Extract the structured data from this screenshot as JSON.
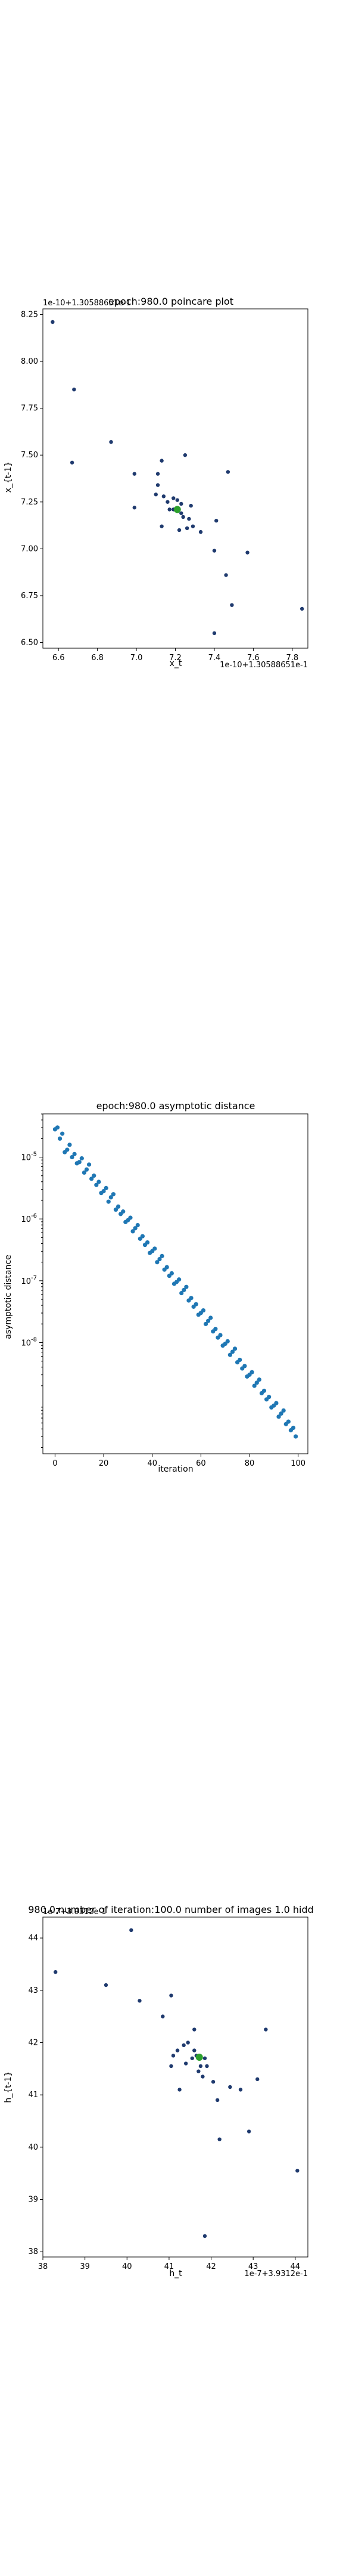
{
  "colors": {
    "points": "#1f3a6e",
    "asym_points": "#1f77b4",
    "fixed_point": "#2ca02c",
    "axis": "#000000"
  },
  "chart_data": [
    {
      "type": "scatter",
      "title": "epoch:980.0 poincare plot",
      "xlabel": "x_t",
      "ylabel": "x_{t-1}",
      "x_offset_label": "1e-10+1.30588651e-1",
      "y_offset_label": "1e-10+1.30588651e-1",
      "xlim": [
        6.52,
        7.88
      ],
      "ylim": [
        6.47,
        8.28
      ],
      "xticks": [
        6.6,
        6.8,
        7.0,
        7.2,
        7.4,
        7.6,
        7.8
      ],
      "yticks": [
        6.5,
        6.75,
        7.0,
        7.25,
        7.5,
        7.75,
        8.0,
        8.25
      ],
      "points": [
        [
          6.57,
          8.21
        ],
        [
          6.68,
          7.85
        ],
        [
          6.67,
          7.46
        ],
        [
          6.87,
          7.57
        ],
        [
          6.99,
          7.22
        ],
        [
          6.99,
          7.4
        ],
        [
          7.11,
          7.4
        ],
        [
          7.13,
          7.47
        ],
        [
          7.25,
          7.5
        ],
        [
          7.47,
          7.41
        ],
        [
          7.11,
          7.34
        ],
        [
          7.14,
          7.28
        ],
        [
          7.1,
          7.29
        ],
        [
          7.16,
          7.25
        ],
        [
          7.19,
          7.27
        ],
        [
          7.21,
          7.26
        ],
        [
          7.23,
          7.24
        ],
        [
          7.23,
          7.19
        ],
        [
          7.24,
          7.17
        ],
        [
          7.27,
          7.16
        ],
        [
          7.28,
          7.23
        ],
        [
          7.29,
          7.12
        ],
        [
          7.26,
          7.11
        ],
        [
          7.33,
          7.09
        ],
        [
          7.17,
          7.21
        ],
        [
          7.19,
          7.21
        ],
        [
          7.13,
          7.12
        ],
        [
          7.22,
          7.1
        ],
        [
          7.41,
          7.15
        ],
        [
          7.4,
          6.99
        ],
        [
          7.46,
          6.86
        ],
        [
          7.49,
          6.7
        ],
        [
          7.4,
          6.55
        ],
        [
          7.57,
          6.98
        ],
        [
          7.85,
          6.68
        ]
      ],
      "fixed_point": [
        7.21,
        7.21
      ]
    },
    {
      "type": "scatter",
      "title": "epoch:980.0 asymptotic distance",
      "xlabel": "iteration",
      "ylabel": "asymptotic distance",
      "yscale": "log",
      "xlim": [
        -5,
        104
      ],
      "ylim_log10": [
        -9.8,
        -4.3
      ],
      "xticks": [
        0,
        20,
        40,
        60,
        80,
        100
      ],
      "yticks": [
        "10^-5",
        "10^-6",
        "10^-7",
        "10^-8"
      ],
      "ytick_exponents": [
        -5,
        -6,
        -7,
        -8
      ],
      "x": [
        0,
        1,
        2,
        3,
        4,
        5,
        6,
        7,
        8,
        9,
        10,
        11,
        12,
        13,
        14,
        15,
        16,
        17,
        18,
        19,
        20,
        21,
        22,
        23,
        24,
        25,
        26,
        27,
        28,
        29,
        30,
        31,
        32,
        33,
        34,
        35,
        36,
        37,
        38,
        39,
        40,
        41,
        42,
        43,
        44,
        45,
        46,
        47,
        48,
        49,
        50,
        51,
        52,
        53,
        54,
        55,
        56,
        57,
        58,
        59,
        60,
        61,
        62,
        63,
        64,
        65,
        66,
        67,
        68,
        69,
        70,
        71,
        72,
        73,
        74,
        75,
        76,
        77,
        78,
        79,
        80,
        81,
        82,
        83,
        84,
        85,
        86,
        87,
        88,
        89,
        90,
        91,
        92,
        93,
        94,
        95,
        96,
        97,
        98,
        99
      ],
      "y_log10": [
        -4.55,
        -4.52,
        -4.7,
        -4.62,
        -4.92,
        -4.88,
        -4.8,
        -5.0,
        -4.95,
        -5.1,
        -5.08,
        -5.02,
        -5.25,
        -5.2,
        -5.12,
        -5.35,
        -5.3,
        -5.45,
        -5.4,
        -5.58,
        -5.55,
        -5.5,
        -5.72,
        -5.65,
        -5.6,
        -5.85,
        -5.8,
        -5.92,
        -5.88,
        -6.05,
        -6.02,
        -5.98,
        -6.2,
        -6.15,
        -6.1,
        -6.32,
        -6.28,
        -6.42,
        -6.38,
        -6.55,
        -6.52,
        -6.48,
        -6.7,
        -6.65,
        -6.6,
        -6.82,
        -6.78,
        -6.92,
        -6.88,
        -7.05,
        -7.02,
        -6.98,
        -7.2,
        -7.15,
        -7.1,
        -7.32,
        -7.28,
        -7.42,
        -7.38,
        -7.55,
        -7.52,
        -7.48,
        -7.7,
        -7.65,
        -7.6,
        -7.82,
        -7.78,
        -7.92,
        -7.88,
        -8.05,
        -8.02,
        -7.98,
        -8.2,
        -8.15,
        -8.1,
        -8.32,
        -8.28,
        -8.42,
        -8.38,
        -8.55,
        -8.52,
        -8.48,
        -8.7,
        -8.65,
        -8.6,
        -8.82,
        -8.78,
        -8.92,
        -8.88,
        -9.05,
        -9.02,
        -8.98,
        -9.2,
        -9.15,
        -9.1,
        -9.32,
        -9.28,
        -9.42,
        -9.38,
        -9.52
      ]
    },
    {
      "type": "scatter",
      "title": "980.0,number of iteration:100.0  number of images 1.0 hidd",
      "title_overlay": "1e-7+3.9312e-1",
      "xlabel": "h_t",
      "ylabel": "h_{t-1}",
      "x_offset_label": "1e-7+3.9312e-1",
      "xlim": [
        38.0,
        44.3
      ],
      "ylim": [
        37.9,
        44.4
      ],
      "xticks": [
        38,
        39,
        40,
        41,
        42,
        43,
        44
      ],
      "yticks": [
        38,
        39,
        40,
        41,
        42,
        43,
        44
      ],
      "points": [
        [
          38.3,
          43.35
        ],
        [
          40.1,
          44.15
        ],
        [
          39.5,
          43.1
        ],
        [
          40.3,
          42.8
        ],
        [
          41.05,
          42.9
        ],
        [
          40.85,
          42.5
        ],
        [
          41.6,
          42.25
        ],
        [
          43.3,
          42.25
        ],
        [
          41.2,
          41.85
        ],
        [
          41.35,
          41.95
        ],
        [
          41.45,
          42.0
        ],
        [
          41.6,
          41.85
        ],
        [
          41.65,
          41.75
        ],
        [
          41.55,
          41.7
        ],
        [
          41.75,
          41.55
        ],
        [
          41.85,
          41.7
        ],
        [
          41.9,
          41.55
        ],
        [
          41.7,
          41.45
        ],
        [
          41.4,
          41.6
        ],
        [
          41.1,
          41.75
        ],
        [
          41.05,
          41.55
        ],
        [
          41.8,
          41.35
        ],
        [
          42.05,
          41.25
        ],
        [
          42.15,
          40.9
        ],
        [
          42.45,
          41.15
        ],
        [
          42.7,
          41.1
        ],
        [
          43.1,
          41.3
        ],
        [
          41.25,
          41.1
        ],
        [
          42.2,
          40.15
        ],
        [
          42.9,
          40.3
        ],
        [
          44.05,
          39.55
        ],
        [
          41.85,
          38.3
        ]
      ],
      "fixed_point": [
        41.72,
        41.72
      ]
    }
  ]
}
